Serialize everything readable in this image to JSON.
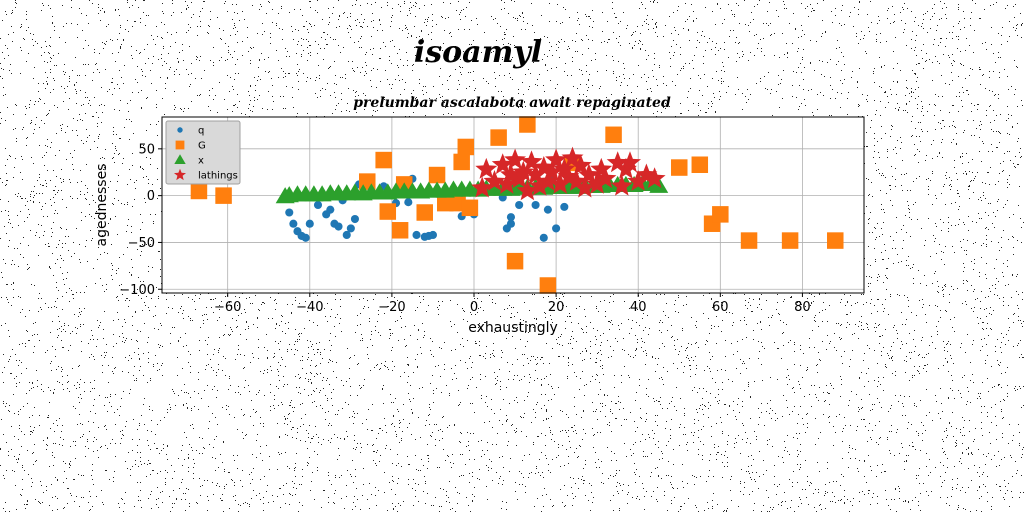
{
  "figure": {
    "suptitle": "isoamyl"
  },
  "colors": {
    "q": "#1f77b4",
    "G": "#ff7f0e",
    "x": "#2ca02c",
    "lathings": "#d62728"
  },
  "chart_data": {
    "type": "scatter",
    "title": "prelumbar ascalabota await repaginated",
    "xlabel": "exhaustingly",
    "ylabel": "agednesses",
    "xlim": [
      -76,
      95
    ],
    "ylim": [
      -104,
      84
    ],
    "xticks": [
      -60,
      -40,
      -20,
      0,
      20,
      40,
      60,
      80
    ],
    "yticks": [
      -100,
      -50,
      0,
      50
    ],
    "grid": true,
    "legend_position": "upper-left",
    "series": [
      {
        "name": "q",
        "marker": "circle",
        "color": "#1f77b4",
        "points": [
          [
            -45,
            -18
          ],
          [
            -44,
            -30
          ],
          [
            -43,
            -38
          ],
          [
            -42,
            -43
          ],
          [
            -41,
            -45
          ],
          [
            -40,
            -30
          ],
          [
            -38,
            -10
          ],
          [
            -36,
            -20
          ],
          [
            -35,
            -15
          ],
          [
            -34,
            -30
          ],
          [
            -33,
            -33
          ],
          [
            -32,
            -5
          ],
          [
            -31,
            -42
          ],
          [
            -30,
            -35
          ],
          [
            -29,
            -25
          ],
          [
            -28,
            12
          ],
          [
            -25,
            15
          ],
          [
            -22,
            10
          ],
          [
            -19,
            -8
          ],
          [
            -16,
            -7
          ],
          [
            -15,
            18
          ],
          [
            -14,
            -42
          ],
          [
            -12,
            -44
          ],
          [
            -11,
            -43
          ],
          [
            -10,
            -42
          ],
          [
            -3,
            -22
          ],
          [
            0,
            -20
          ],
          [
            5,
            5
          ],
          [
            7,
            -2
          ],
          [
            8,
            -35
          ],
          [
            9,
            -30
          ],
          [
            9,
            -23
          ],
          [
            11,
            -10
          ],
          [
            15,
            -10
          ],
          [
            17,
            -45
          ],
          [
            18,
            -15
          ],
          [
            19,
            20
          ],
          [
            20,
            -35
          ],
          [
            22,
            -12
          ]
        ]
      },
      {
        "name": "G",
        "marker": "square",
        "color": "#ff7f0e",
        "points": [
          [
            -67,
            5
          ],
          [
            -61,
            0
          ],
          [
            -26,
            15
          ],
          [
            -22,
            38
          ],
          [
            -21,
            -17
          ],
          [
            -18,
            -37
          ],
          [
            -17,
            12
          ],
          [
            -12,
            -18
          ],
          [
            -9,
            22
          ],
          [
            -7,
            -8
          ],
          [
            -4,
            -8
          ],
          [
            -3,
            36
          ],
          [
            -2,
            52
          ],
          [
            -1,
            -13
          ],
          [
            6,
            62
          ],
          [
            10,
            -70
          ],
          [
            13,
            76
          ],
          [
            18,
            -96
          ],
          [
            24,
            35
          ],
          [
            34,
            65
          ],
          [
            50,
            30
          ],
          [
            55,
            33
          ],
          [
            58,
            -30
          ],
          [
            60,
            -20
          ],
          [
            67,
            -48
          ],
          [
            77,
            -48
          ],
          [
            88,
            -48
          ]
        ]
      },
      {
        "name": "x",
        "marker": "triangle",
        "color": "#2ca02c",
        "points": [
          [
            -46,
            -1
          ],
          [
            -45,
            0
          ],
          [
            -43,
            1
          ],
          [
            -41,
            1
          ],
          [
            -39,
            1
          ],
          [
            -37,
            1
          ],
          [
            -35,
            2
          ],
          [
            -33,
            2
          ],
          [
            -31,
            2
          ],
          [
            -29,
            3
          ],
          [
            -27,
            2
          ],
          [
            -25,
            3
          ],
          [
            -23,
            3
          ],
          [
            -21,
            3
          ],
          [
            -19,
            4
          ],
          [
            -17,
            4
          ],
          [
            -15,
            4
          ],
          [
            -13,
            4
          ],
          [
            -11,
            5
          ],
          [
            -9,
            5
          ],
          [
            -7,
            5
          ],
          [
            -5,
            6
          ],
          [
            -3,
            6
          ],
          [
            -1,
            6
          ],
          [
            1,
            6
          ],
          [
            3,
            7
          ],
          [
            5,
            7
          ],
          [
            7,
            7
          ],
          [
            9,
            7
          ],
          [
            11,
            8
          ],
          [
            13,
            8
          ],
          [
            15,
            8
          ],
          [
            17,
            8
          ],
          [
            19,
            9
          ],
          [
            21,
            9
          ],
          [
            23,
            9
          ],
          [
            25,
            9
          ],
          [
            27,
            10
          ],
          [
            29,
            10
          ],
          [
            31,
            10
          ],
          [
            33,
            11
          ],
          [
            35,
            11
          ],
          [
            37,
            11
          ],
          [
            39,
            11
          ],
          [
            41,
            12
          ],
          [
            43,
            12
          ],
          [
            45,
            10
          ]
        ]
      },
      {
        "name": "lathings",
        "marker": "star",
        "color": "#d62728",
        "points": [
          [
            2,
            8
          ],
          [
            3,
            28
          ],
          [
            5,
            15
          ],
          [
            7,
            33
          ],
          [
            8,
            12
          ],
          [
            9,
            22
          ],
          [
            10,
            38
          ],
          [
            11,
            18
          ],
          [
            12,
            25
          ],
          [
            13,
            5
          ],
          [
            14,
            36
          ],
          [
            15,
            22
          ],
          [
            16,
            10
          ],
          [
            17,
            30
          ],
          [
            18,
            15
          ],
          [
            19,
            25
          ],
          [
            20,
            38
          ],
          [
            21,
            12
          ],
          [
            22,
            28
          ],
          [
            23,
            20
          ],
          [
            24,
            40
          ],
          [
            25,
            15
          ],
          [
            26,
            32
          ],
          [
            27,
            8
          ],
          [
            28,
            22
          ],
          [
            30,
            12
          ],
          [
            31,
            28
          ],
          [
            32,
            18
          ],
          [
            35,
            35
          ],
          [
            36,
            10
          ],
          [
            37,
            28
          ],
          [
            38,
            35
          ],
          [
            40,
            15
          ],
          [
            42,
            22
          ],
          [
            44,
            18
          ]
        ]
      }
    ]
  }
}
